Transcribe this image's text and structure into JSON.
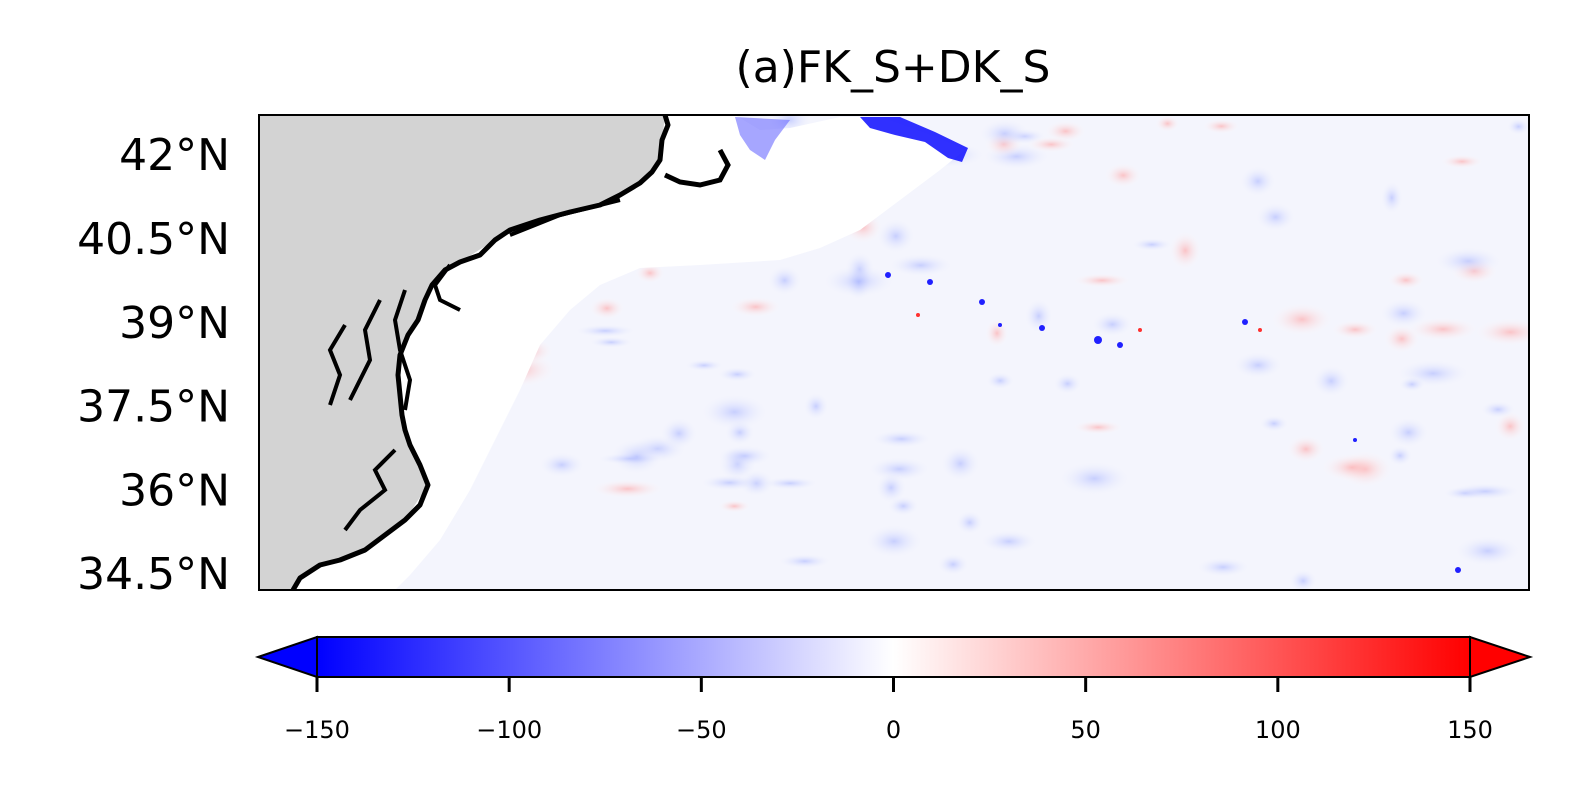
{
  "figure": {
    "title": "(a)FK_S+DK_S"
  },
  "map": {
    "lat_ticks": [
      {
        "value": 42,
        "label": "42°N"
      },
      {
        "value": 40.5,
        "label": "40.5°N"
      },
      {
        "value": 39,
        "label": "39°N"
      },
      {
        "value": 37.5,
        "label": "37.5°N"
      },
      {
        "value": 36,
        "label": "36°N"
      },
      {
        "value": 34.5,
        "label": "34.5°N"
      }
    ],
    "lat_range": [
      34.2,
      42.7
    ],
    "land_color": "#d3d3d3",
    "coast_color": "#000000",
    "features": [
      "coastline",
      "land fill",
      "blue anomaly along Georges Bank / shelf break",
      "mesoscale red/blue eddy field"
    ]
  },
  "colorbar": {
    "cmap": "bwr",
    "vmin": -150,
    "vmax": 150,
    "extend": "both",
    "ticks": [
      {
        "value": -150,
        "label": "−150"
      },
      {
        "value": -100,
        "label": "−100"
      },
      {
        "value": -50,
        "label": "−50"
      },
      {
        "value": 0,
        "label": "0"
      },
      {
        "value": 50,
        "label": "50"
      },
      {
        "value": 100,
        "label": "100"
      },
      {
        "value": 150,
        "label": "150"
      }
    ],
    "colors": {
      "low": "#0000ff",
      "mid": "#ffffff",
      "high": "#ff0000"
    }
  }
}
